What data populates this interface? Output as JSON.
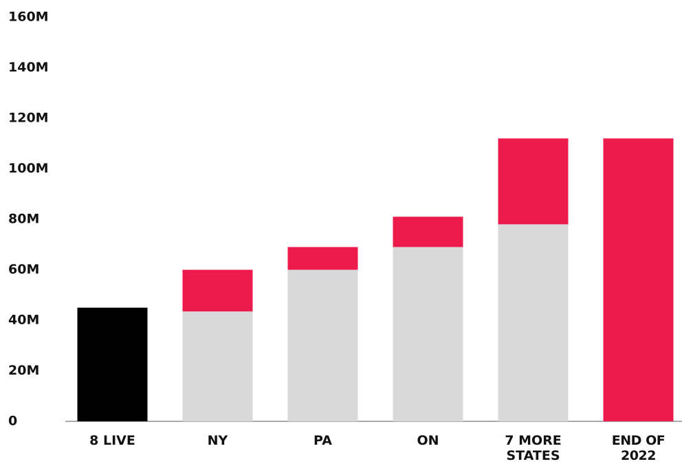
{
  "chart_data": {
    "type": "bar",
    "stacked": true,
    "categories": [
      "8 LIVE",
      "NY",
      "PA",
      "ON",
      "7 MORE STATES",
      "END OF 2022"
    ],
    "series": [
      {
        "color": "#000000",
        "values": [
          45,
          null,
          null,
          null,
          null,
          null
        ]
      },
      {
        "color": "#d9d9d9",
        "values": [
          null,
          43.5,
          60,
          69,
          78,
          null
        ]
      },
      {
        "color": "#ec1b4b",
        "values": [
          null,
          16.5,
          9,
          12,
          34,
          112
        ]
      }
    ],
    "ylim": [
      0,
      160
    ],
    "yticks": [
      0,
      {
        "value": 20,
        "label": "20M"
      },
      {
        "value": 40,
        "label": "40M"
      },
      {
        "value": 60,
        "label": "60M"
      },
      {
        "value": 80,
        "label": "80M"
      },
      {
        "value": 100,
        "label": "100M"
      },
      {
        "value": 120,
        "label": "120M"
      },
      {
        "value": 140,
        "label": "140M"
      },
      {
        "value": 160,
        "label": "160M"
      }
    ],
    "grid": false
  }
}
